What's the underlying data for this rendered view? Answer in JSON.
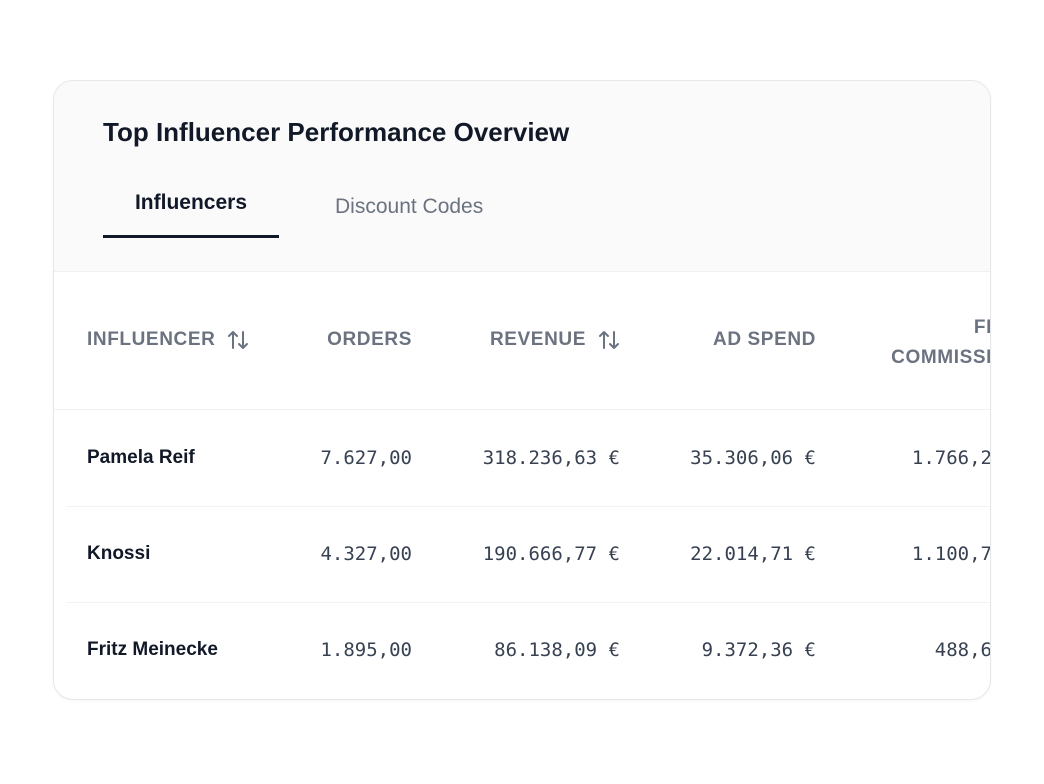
{
  "header": {
    "title": "Top Influencer Performance Overview"
  },
  "tabs": [
    "Influencers",
    "Discount Codes"
  ],
  "table": {
    "columns": [
      "INFLUENCER",
      "ORDERS",
      "REVENUE",
      "AD SPEND",
      [
        "FI",
        "COMMISSI"
      ]
    ],
    "rows": [
      [
        "Pamela Reif",
        "7.627,00",
        "318.236,63 €",
        "35.306,06 €",
        "1.766,2"
      ],
      [
        "Knossi",
        "4.327,00",
        "190.666,77 €",
        "22.014,71 €",
        "1.100,7"
      ],
      [
        "Fritz Meinecke",
        "1.895,00",
        "86.138,09 €",
        "9.372,36 €",
        "488,6"
      ]
    ]
  }
}
